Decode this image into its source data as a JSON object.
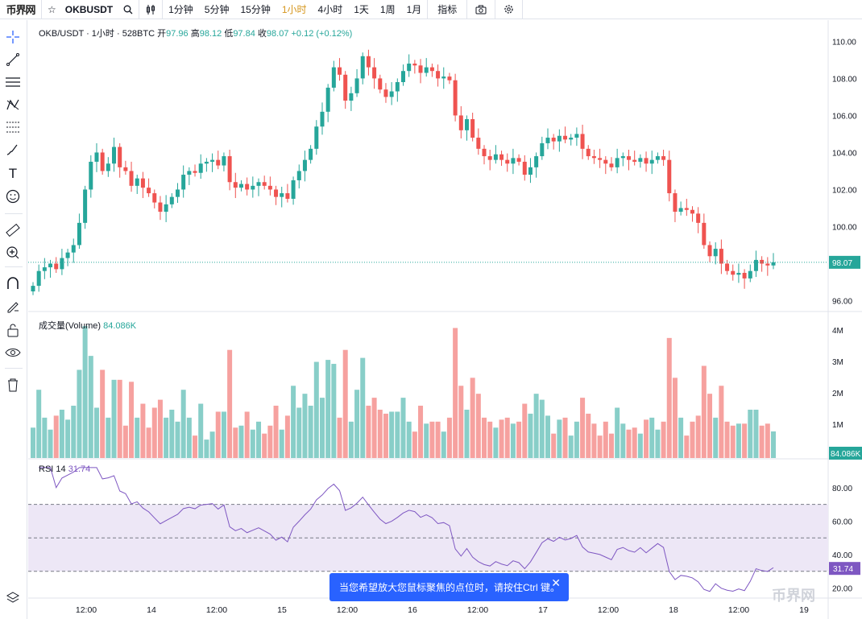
{
  "topbar": {
    "logo": "币界网",
    "symbol": "OKBUSDT",
    "intervals": [
      "1分钟",
      "5分钟",
      "15分钟",
      "1小时",
      "4小时",
      "1天",
      "1周",
      "1月"
    ],
    "active_interval": "1小时",
    "indicators_label": "指标"
  },
  "legend": {
    "title": "OKB/USDT · 1小时 · 528BTC",
    "open_label": "开",
    "open": "97.96",
    "high_label": "高",
    "high": "98.12",
    "low_label": "低",
    "low": "97.84",
    "close_label": "收",
    "close": "98.07",
    "change": "+0.12 (+0.12%)"
  },
  "volume": {
    "label": "成交量(Volume)",
    "value": "84.086K",
    "axis": [
      "4M",
      "3M",
      "2M",
      "1M"
    ]
  },
  "rsi": {
    "label": "RSI",
    "period": "14",
    "value": "31.74",
    "axis": [
      "80.00",
      "60.00",
      "40.00",
      "20.00"
    ],
    "upper": 70,
    "middle": 50,
    "lower": 30
  },
  "price_axis": [
    "110.00",
    "108.00",
    "106.00",
    "104.00",
    "102.00",
    "100.00",
    "98.00",
    "96.00"
  ],
  "last_price": "98.07",
  "time_axis": [
    "12:00",
    "14",
    "12:00",
    "15",
    "12:00",
    "16",
    "12:00",
    "17",
    "12:00",
    "18",
    "12:00",
    "19"
  ],
  "tip": "当您希望放大您鼠标聚焦的点位时，请按住Ctrl 键。",
  "watermark": "币界网",
  "colors": {
    "up": "#26a69a",
    "down": "#ef5350",
    "rsi_line": "#7e57c2",
    "rsi_band": "#ede7f6"
  },
  "chart_data": {
    "type": "candlestick",
    "close_series": [
      96.8,
      97.6,
      97.8,
      98.0,
      97.7,
      98.3,
      98.6,
      99.0,
      100.2,
      102.0,
      103.5,
      104.0,
      103.0,
      103.4,
      104.3,
      103.2,
      103.0,
      102.2,
      102.6,
      102.1,
      101.8,
      101.3,
      100.8,
      101.2,
      101.6,
      102.0,
      102.8,
      103.0,
      102.9,
      103.4,
      103.5,
      103.6,
      103.3,
      103.8,
      102.4,
      102.1,
      102.3,
      102.0,
      102.2,
      102.4,
      102.2,
      102.0,
      101.6,
      101.8,
      101.5,
      102.5,
      103.0,
      103.6,
      104.2,
      105.4,
      106.2,
      107.5,
      108.6,
      108.2,
      106.8,
      107.2,
      108.0,
      109.2,
      108.6,
      108.0,
      107.4,
      107.0,
      107.3,
      107.8,
      108.4,
      108.8,
      108.7,
      108.3,
      108.6,
      108.4,
      108.0,
      108.1,
      107.9,
      106.0,
      105.2,
      105.8,
      104.8,
      104.2,
      103.8,
      103.6,
      103.9,
      103.6,
      103.4,
      103.7,
      103.5,
      102.8,
      103.2,
      103.8,
      104.5,
      104.8,
      104.6,
      104.9,
      104.7,
      104.8,
      105.0,
      104.2,
      103.8,
      103.7,
      103.6,
      103.4,
      103.2,
      103.7,
      103.8,
      103.6,
      103.5,
      103.7,
      103.4,
      103.6,
      103.8,
      103.6,
      101.8,
      100.8,
      101.0,
      100.9,
      100.7,
      100.2,
      99.0,
      98.4,
      98.8,
      98.0,
      97.6,
      97.4,
      97.5,
      97.2,
      97.6,
      98.2,
      98.0,
      97.9,
      98.07
    ],
    "price_range": [
      95.5,
      110.8
    ]
  }
}
